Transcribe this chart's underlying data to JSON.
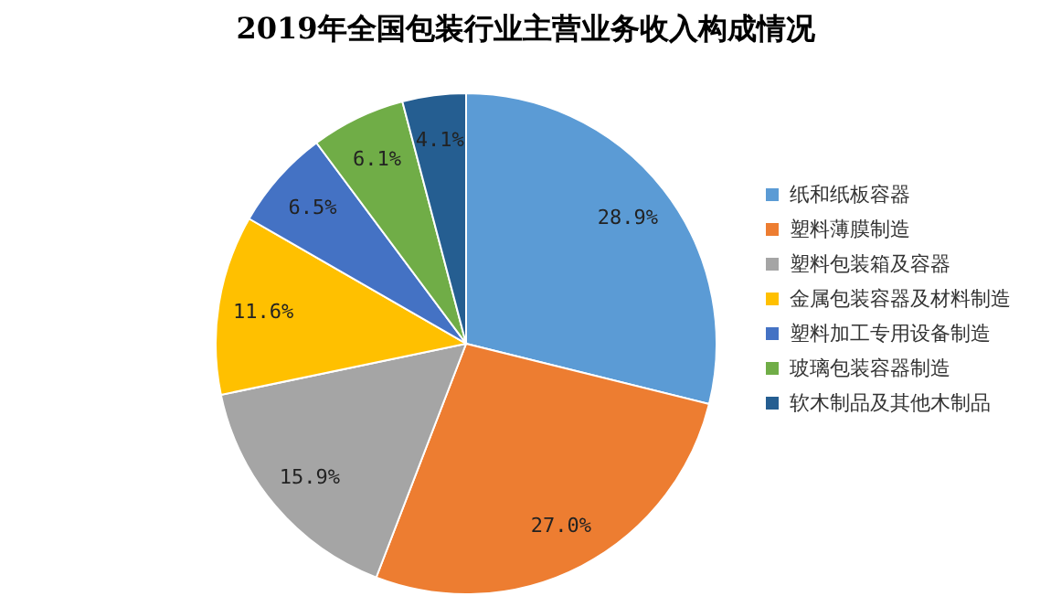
{
  "chart_data": {
    "type": "pie",
    "title": "2019年全国包装行业主营业务收入构成情况",
    "categories": [
      "纸和纸板容器",
      "塑料薄膜制造",
      "塑料包装箱及容器",
      "金属包装容器及材料制造",
      "塑料加工专用设备制造",
      "玻璃包装容器制造",
      "软木制品及其他木制品"
    ],
    "values": [
      28.9,
      27.0,
      15.9,
      11.6,
      6.5,
      6.1,
      4.1
    ],
    "value_labels": [
      "28.9%",
      "27.0%",
      "15.9%",
      "11.6%",
      "6.5%",
      "6.1%",
      "4.1%"
    ],
    "colors": [
      "#5b9bd5",
      "#ed7d31",
      "#a5a5a5",
      "#ffc000",
      "#4472c4",
      "#70ad47",
      "#255e91"
    ],
    "legend": "right"
  }
}
